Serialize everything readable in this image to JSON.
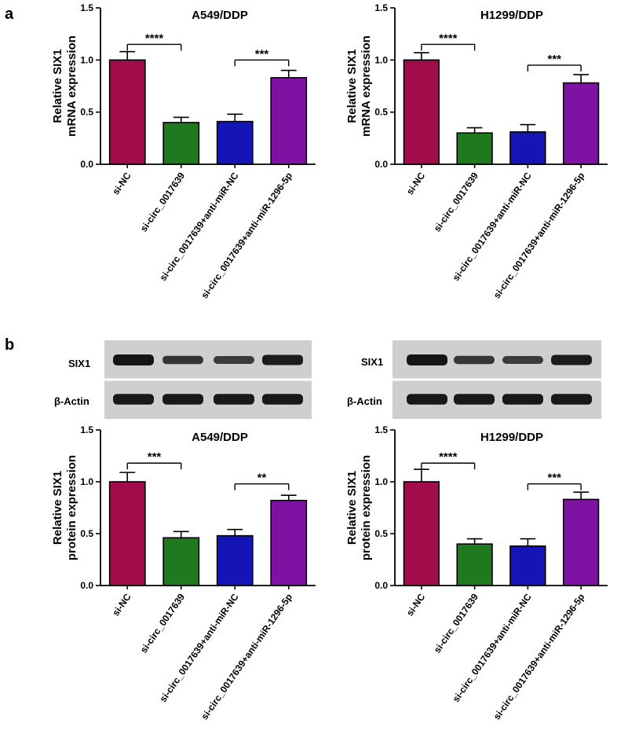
{
  "panels": {
    "a": "a",
    "b": "b"
  },
  "blots": [
    {
      "row_labels": [
        "SIX1",
        "β-Actin"
      ],
      "band_intensity": {
        "SIX1": [
          1.0,
          0.62,
          0.55,
          0.9
        ],
        "β-Actin": [
          0.95,
          0.95,
          0.95,
          0.95
        ]
      }
    },
    {
      "row_labels": [
        "SIX1",
        "β-Actin"
      ],
      "band_intensity": {
        "SIX1": [
          1.0,
          0.6,
          0.55,
          0.9
        ],
        "β-Actin": [
          0.95,
          0.95,
          0.95,
          0.95
        ]
      }
    }
  ],
  "chart_data": [
    {
      "type": "bar",
      "title": "A549/DDP",
      "ylabel": [
        "Relative SIX1",
        "mRNA expression"
      ],
      "categories": [
        "si-NC",
        "si-circ_0017639",
        "si-circ_0017639+anti-miR-NC",
        "si-circ_0017639+anti-miR-1296-5p"
      ],
      "values": [
        1.0,
        0.4,
        0.41,
        0.83
      ],
      "errors": [
        0.08,
        0.05,
        0.07,
        0.07
      ],
      "colors": [
        "#a10d4b",
        "#1f7a1f",
        "#1515b5",
        "#7d12a3"
      ],
      "ylim": [
        0,
        1.5
      ],
      "yticks": [
        "0.0",
        "0.5",
        "1.0",
        "1.5"
      ],
      "significance": [
        {
          "pair": [
            0,
            1
          ],
          "label": "****",
          "y": 1.15
        },
        {
          "pair": [
            2,
            3
          ],
          "label": "***",
          "y": 1.0
        }
      ]
    },
    {
      "type": "bar",
      "title": "H1299/DDP",
      "ylabel": [
        "Relative SIX1",
        "mRNA expression"
      ],
      "categories": [
        "si-NC",
        "si-circ_0017639",
        "si-circ_0017639+anti-miR-NC",
        "si-circ_0017639+anti-miR-1296-5p"
      ],
      "values": [
        1.0,
        0.3,
        0.31,
        0.78
      ],
      "errors": [
        0.07,
        0.05,
        0.07,
        0.08
      ],
      "colors": [
        "#a10d4b",
        "#1f7a1f",
        "#1515b5",
        "#7d12a3"
      ],
      "ylim": [
        0,
        1.5
      ],
      "yticks": [
        "0.0",
        "0.5",
        "1.0",
        "1.5"
      ],
      "significance": [
        {
          "pair": [
            0,
            1
          ],
          "label": "****",
          "y": 1.15
        },
        {
          "pair": [
            2,
            3
          ],
          "label": "***",
          "y": 0.95
        }
      ]
    },
    {
      "type": "bar",
      "title": "A549/DDP",
      "ylabel": [
        "Relative SIX1",
        "protein expression"
      ],
      "categories": [
        "si-NC",
        "si-circ_0017639",
        "si-circ_0017639+anti-miR-NC",
        "si-circ_0017639+anti-miR-1296-5p"
      ],
      "values": [
        1.0,
        0.46,
        0.48,
        0.82
      ],
      "errors": [
        0.09,
        0.06,
        0.06,
        0.05
      ],
      "colors": [
        "#a10d4b",
        "#1f7a1f",
        "#1515b5",
        "#7d12a3"
      ],
      "ylim": [
        0,
        1.5
      ],
      "yticks": [
        "0.0",
        "0.5",
        "1.0",
        "1.5"
      ],
      "significance": [
        {
          "pair": [
            0,
            1
          ],
          "label": "***",
          "y": 1.18
        },
        {
          "pair": [
            2,
            3
          ],
          "label": "**",
          "y": 0.98
        }
      ]
    },
    {
      "type": "bar",
      "title": "H1299/DDP",
      "ylabel": [
        "Relative SIX1",
        "protein expression"
      ],
      "categories": [
        "si-NC",
        "si-circ_0017639",
        "si-circ_0017639+anti-miR-NC",
        "si-circ_0017639+anti-miR-1296-5p"
      ],
      "values": [
        1.0,
        0.4,
        0.38,
        0.83
      ],
      "errors": [
        0.12,
        0.05,
        0.07,
        0.07
      ],
      "colors": [
        "#a10d4b",
        "#1f7a1f",
        "#1515b5",
        "#7d12a3"
      ],
      "ylim": [
        0,
        1.5
      ],
      "yticks": [
        "0.0",
        "0.5",
        "1.0",
        "1.5"
      ],
      "significance": [
        {
          "pair": [
            0,
            1
          ],
          "label": "****",
          "y": 1.18
        },
        {
          "pair": [
            2,
            3
          ],
          "label": "***",
          "y": 0.98
        }
      ]
    }
  ]
}
